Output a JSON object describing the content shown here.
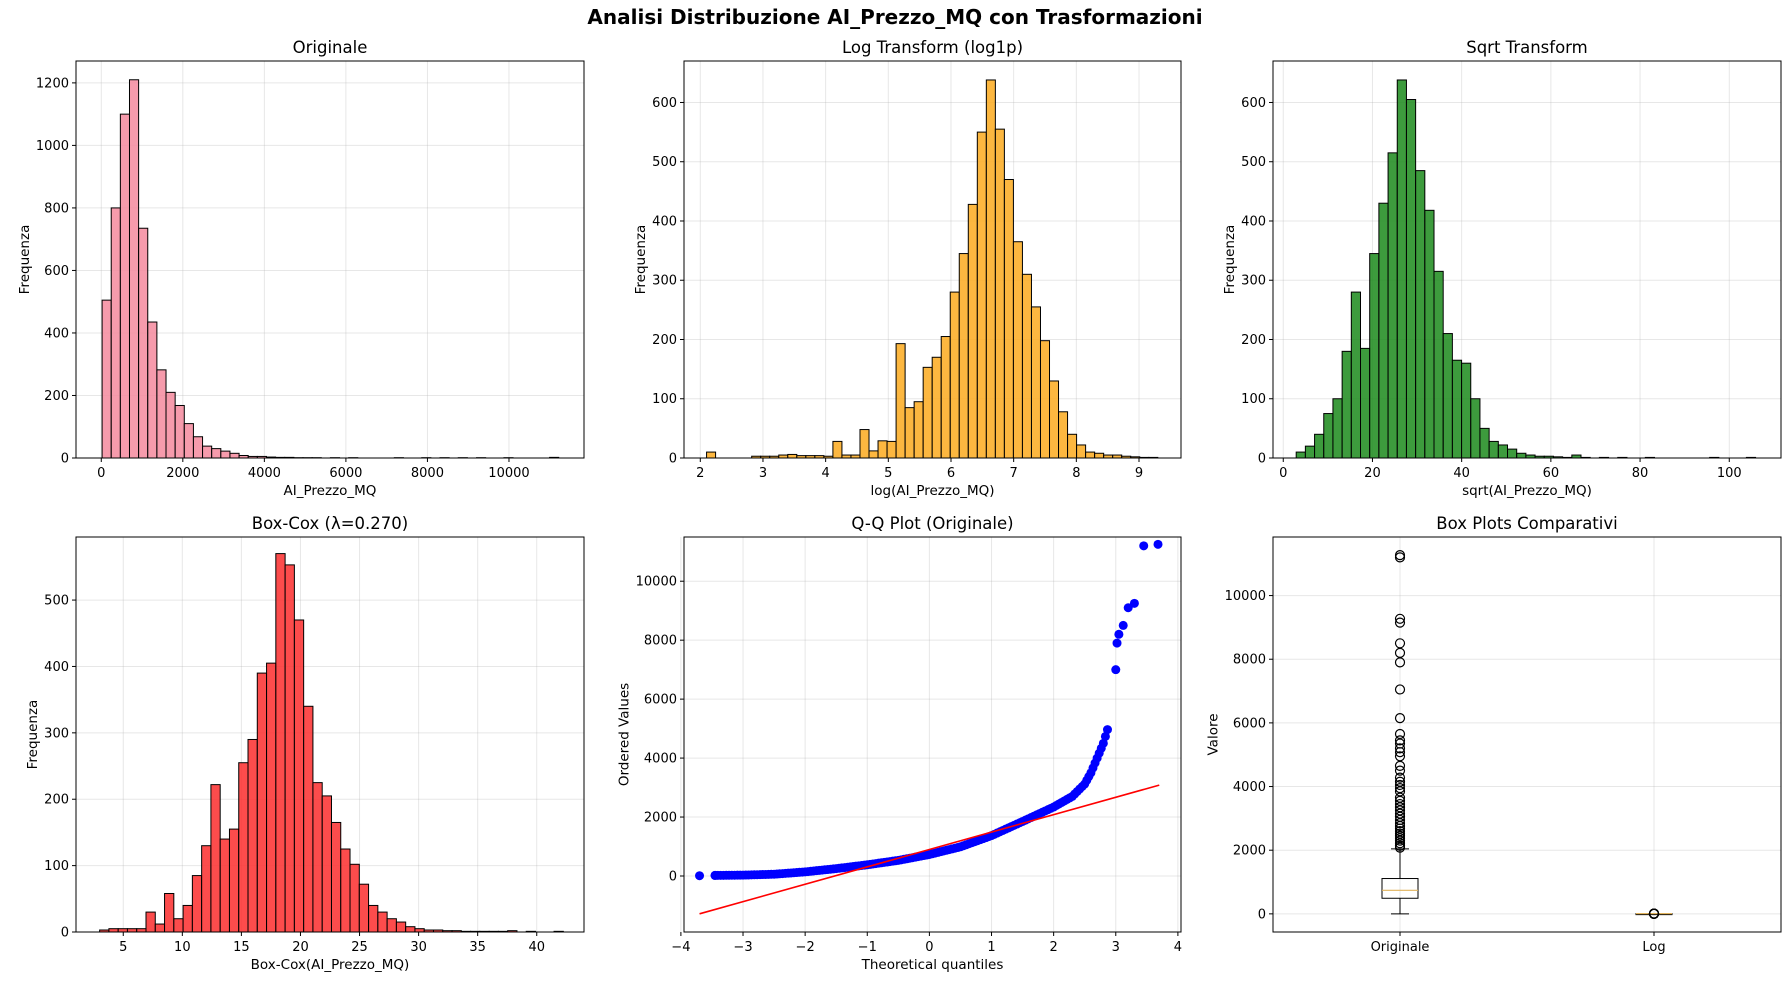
{
  "figure": {
    "suptitle": "Analisi Distribuzione AI_Prezzo_MQ con Trasformazioni"
  },
  "chart_data": [
    {
      "type": "bar",
      "title": "Originale",
      "xlabel": "AI_Prezzo_MQ",
      "ylabel": "Frequenza",
      "color": "#f4899d",
      "alpha": 0.85,
      "bins": {
        "start": 20,
        "width": 224
      },
      "values": [
        505,
        800,
        1100,
        1210,
        735,
        435,
        282,
        210,
        168,
        110,
        68,
        38,
        30,
        22,
        15,
        8,
        5,
        5,
        3,
        2,
        2,
        1,
        1,
        1,
        0,
        1,
        0,
        1,
        0,
        0,
        0,
        0,
        1,
        0,
        0,
        1,
        0,
        1,
        0,
        1,
        0,
        1,
        0,
        0,
        1,
        0,
        0,
        0,
        0,
        2
      ],
      "xlim": [
        -620,
        11840
      ],
      "ylim": [
        0,
        1270
      ],
      "xticks": [
        0,
        2000,
        4000,
        6000,
        8000,
        10000
      ],
      "yticks": [
        0,
        200,
        400,
        600,
        800,
        1000,
        1200
      ],
      "grid": true
    },
    {
      "type": "bar",
      "title": "Log Transform (log1p)",
      "xlabel": "log(AI_Prezzo_MQ)",
      "ylabel": "Frequenza",
      "color": "#fbaa1e",
      "alpha": 0.85,
      "bins": {
        "start": 2.1,
        "width": 0.144
      },
      "values": [
        10,
        0,
        0,
        0,
        0,
        3,
        3,
        3,
        5,
        6,
        4,
        4,
        4,
        3,
        28,
        5,
        5,
        48,
        12,
        29,
        28,
        193,
        85,
        95,
        153,
        170,
        205,
        280,
        345,
        428,
        550,
        638,
        555,
        470,
        365,
        310,
        255,
        198,
        130,
        78,
        40,
        22,
        10,
        8,
        5,
        5,
        3,
        2,
        1,
        1
      ],
      "xlim": [
        1.74,
        9.67
      ],
      "ylim": [
        0,
        670
      ],
      "xticks": [
        2,
        3,
        4,
        5,
        6,
        7,
        8,
        9
      ],
      "yticks": [
        0,
        100,
        200,
        300,
        400,
        500,
        600
      ],
      "grid": true
    },
    {
      "type": "bar",
      "title": "Sqrt Transform",
      "xlabel": "sqrt(AI_Prezzo_MQ)",
      "ylabel": "Frequenza",
      "color": "#1b8a1b",
      "alpha": 0.85,
      "bins": {
        "start": 2.9,
        "width": 2.06
      },
      "values": [
        10,
        20,
        40,
        75,
        100,
        180,
        280,
        185,
        345,
        430,
        515,
        638,
        605,
        485,
        418,
        315,
        210,
        165,
        160,
        100,
        50,
        28,
        22,
        15,
        8,
        5,
        3,
        3,
        2,
        1,
        5,
        1,
        0,
        1,
        0,
        1,
        0,
        0,
        1,
        0,
        0,
        0,
        0,
        0,
        0,
        1,
        0,
        0,
        0,
        1
      ],
      "xlim": [
        -2.3,
        111.6
      ],
      "ylim": [
        0,
        670
      ],
      "xticks": [
        0,
        20,
        40,
        60,
        80,
        100
      ],
      "yticks": [
        0,
        100,
        200,
        300,
        400,
        500,
        600
      ],
      "grid": true
    },
    {
      "type": "bar",
      "title": "Box-Cox (λ=0.270)",
      "xlabel": "Box-Cox(AI_Prezzo_MQ)",
      "ylabel": "Frequenza",
      "color": "#fb2d2d",
      "alpha": 0.85,
      "bins": {
        "start": 3.0,
        "width": 0.785
      },
      "values": [
        3,
        5,
        5,
        5,
        5,
        30,
        12,
        58,
        20,
        40,
        85,
        130,
        222,
        140,
        155,
        255,
        290,
        390,
        405,
        570,
        553,
        470,
        340,
        225,
        205,
        165,
        125,
        102,
        72,
        40,
        30,
        20,
        15,
        8,
        5,
        3,
        3,
        2,
        2,
        1,
        1,
        1,
        1,
        1,
        2,
        0,
        1,
        0,
        0,
        1
      ],
      "xlim": [
        1.0,
        44.0
      ],
      "ylim": [
        0,
        595
      ],
      "xticks": [
        5,
        10,
        15,
        20,
        25,
        30,
        35,
        40
      ],
      "yticks": [
        0,
        100,
        200,
        300,
        400,
        500
      ],
      "grid": true
    },
    {
      "type": "scatter",
      "title": "Q-Q Plot (Originale)",
      "xlabel": "Theoretical quantiles",
      "ylabel": "Ordered Values",
      "point_color": "#0000ff",
      "line_color": "#ff0000",
      "fit_line": {
        "slope": 590,
        "intercept": 900,
        "x": [
          -3.7,
          3.7
        ]
      },
      "curve": [
        [
          -3.45,
          20
        ],
        [
          -3.0,
          30
        ],
        [
          -2.5,
          60
        ],
        [
          -2.0,
          140
        ],
        [
          -1.5,
          250
        ],
        [
          -1.0,
          380
        ],
        [
          -0.5,
          530
        ],
        [
          0.0,
          730
        ],
        [
          0.5,
          990
        ],
        [
          1.0,
          1370
        ],
        [
          1.5,
          1850
        ],
        [
          2.0,
          2340
        ],
        [
          2.3,
          2700
        ],
        [
          2.5,
          3120
        ],
        [
          2.6,
          3500
        ],
        [
          2.7,
          4000
        ],
        [
          2.8,
          4500
        ],
        [
          2.9,
          5200
        ]
      ],
      "points": [
        [
          -3.7,
          10
        ],
        [
          -3.45,
          20
        ],
        [
          3.0,
          7000
        ],
        [
          3.02,
          7900
        ],
        [
          3.05,
          8200
        ],
        [
          3.12,
          8500
        ],
        [
          3.2,
          9100
        ],
        [
          3.3,
          9250
        ],
        [
          3.45,
          11200
        ],
        [
          3.68,
          11250
        ]
      ],
      "xlim": [
        -3.95,
        4.05
      ],
      "ylim": [
        -1900,
        11500
      ],
      "xticks": [
        -4,
        -3,
        -2,
        -1,
        0,
        1,
        2,
        3,
        4
      ],
      "yticks": [
        0,
        2000,
        4000,
        6000,
        8000,
        10000
      ],
      "grid": true
    },
    {
      "type": "box",
      "title": "Box Plots Comparativi",
      "xlabel": "",
      "ylabel": "Valore",
      "median_color": "#e1b35c",
      "categories": [
        "Originale",
        "Log"
      ],
      "boxes": [
        {
          "q1": 490,
          "median": 740,
          "q3": 1110,
          "whisker_low": 0,
          "whisker_high": 2040,
          "fliers": [
            2080,
            2140,
            2220,
            2300,
            2380,
            2450,
            2520,
            2600,
            2680,
            2760,
            2850,
            2950,
            3050,
            3150,
            3250,
            3350,
            3450,
            3550,
            3650,
            3850,
            3950,
            4050,
            4150,
            4280,
            4500,
            4650,
            4950,
            5080,
            5200,
            5350,
            5450,
            5650,
            6150,
            7050,
            7900,
            8200,
            8500,
            9150,
            9270,
            11200,
            11270
          ]
        },
        {
          "q1": 6.2,
          "median": 6.6,
          "q3": 7.0,
          "whisker_low": 4.9,
          "whisker_high": 8.2,
          "fliers": [
            2.1,
            2.8,
            3.0,
            3.5,
            4.0,
            4.3,
            8.5,
            9.0,
            9.3
          ]
        }
      ],
      "ylim": [
        -570,
        11840
      ],
      "yticks": [
        0,
        2000,
        4000,
        6000,
        8000,
        10000
      ],
      "grid": true
    }
  ]
}
